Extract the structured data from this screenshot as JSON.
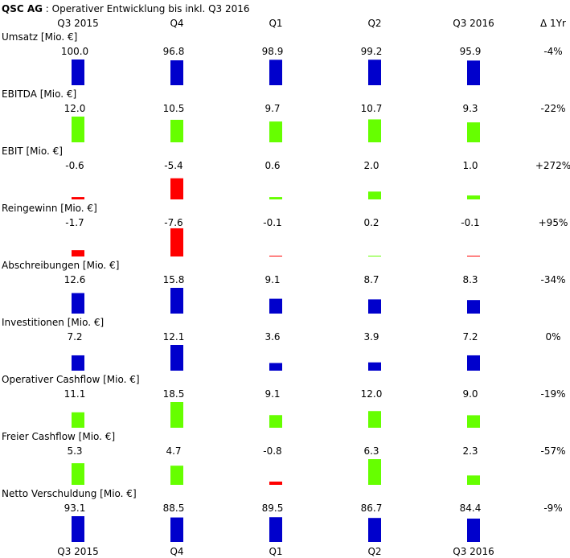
{
  "title": {
    "company": "QSC AG",
    "subtitle": " : Operativer Entwicklung bis inkl. Q3 2016"
  },
  "chart_data": {
    "type": "bar",
    "title": "QSC AG : Operativer Entwicklung bis inkl. Q3 2016",
    "categories": [
      "Q3 2015",
      "Q4",
      "Q1",
      "Q2",
      "Q3 2016"
    ],
    "change_header": "Δ 1Yr",
    "colors": {
      "revenue": "#0000cc",
      "earnings_pos": "#66ff00",
      "earnings_neg": "#ff0000"
    },
    "series": [
      {
        "name": "Umsatz",
        "unit": " [Mio. €]",
        "values": [
          100.0,
          96.8,
          98.9,
          99.2,
          95.9
        ],
        "labels": [
          "100.0",
          "96.8",
          "98.9",
          "99.2",
          "95.9"
        ],
        "change": "-4%",
        "color": "revenue"
      },
      {
        "name": "EBITDA",
        "unit": " [Mio. €]",
        "values": [
          12.0,
          10.5,
          9.7,
          10.7,
          9.3
        ],
        "labels": [
          "12.0",
          "10.5",
          "9.7",
          "10.7",
          "9.3"
        ],
        "change": "-22%",
        "color": "earnings"
      },
      {
        "name": "EBIT",
        "unit": " [Mio. €]",
        "values": [
          -0.6,
          -5.4,
          0.6,
          2.0,
          1.0
        ],
        "labels": [
          "-0.6",
          "-5.4",
          "0.6",
          "2.0",
          "1.0"
        ],
        "change": "+272%",
        "color": "earnings"
      },
      {
        "name": "Reingewinn",
        "unit": " [Mio. €]",
        "values": [
          -1.7,
          -7.6,
          -0.1,
          0.2,
          -0.1
        ],
        "labels": [
          "-1.7",
          "-7.6",
          "-0.1",
          "0.2",
          "-0.1"
        ],
        "change": "+95%",
        "color": "earnings"
      },
      {
        "name": "Abschreibungen",
        "unit": " [Mio. €]",
        "values": [
          12.6,
          15.8,
          9.1,
          8.7,
          8.3
        ],
        "labels": [
          "12.6",
          "15.8",
          "9.1",
          "8.7",
          "8.3"
        ],
        "change": "-34%",
        "color": "revenue"
      },
      {
        "name": "Investitionen",
        "unit": " [Mio. €]",
        "values": [
          7.2,
          12.1,
          3.6,
          3.9,
          7.2
        ],
        "labels": [
          "7.2",
          "12.1",
          "3.6",
          "3.9",
          "7.2"
        ],
        "change": "0%",
        "color": "revenue"
      },
      {
        "name": "Operativer Cashflow",
        "unit": " [Mio. €]",
        "values": [
          11.1,
          18.5,
          9.1,
          12.0,
          9.0
        ],
        "labels": [
          "11.1",
          "18.5",
          "9.1",
          "12.0",
          "9.0"
        ],
        "change": "-19%",
        "color": "earnings"
      },
      {
        "name": "Freier Cashflow",
        "unit": " [Mio. €]",
        "values": [
          5.3,
          4.7,
          -0.8,
          6.3,
          2.3
        ],
        "labels": [
          "5.3",
          "4.7",
          "-0.8",
          "6.3",
          "2.3"
        ],
        "change": "-57%",
        "color": "earnings"
      },
      {
        "name": "Netto Verschuldung",
        "unit": " [Mio. €]",
        "values": [
          93.1,
          88.5,
          89.5,
          86.7,
          84.4
        ],
        "labels": [
          "93.1",
          "88.5",
          "89.5",
          "86.7",
          "84.4"
        ],
        "change": "-9%",
        "color": "revenue"
      }
    ]
  }
}
